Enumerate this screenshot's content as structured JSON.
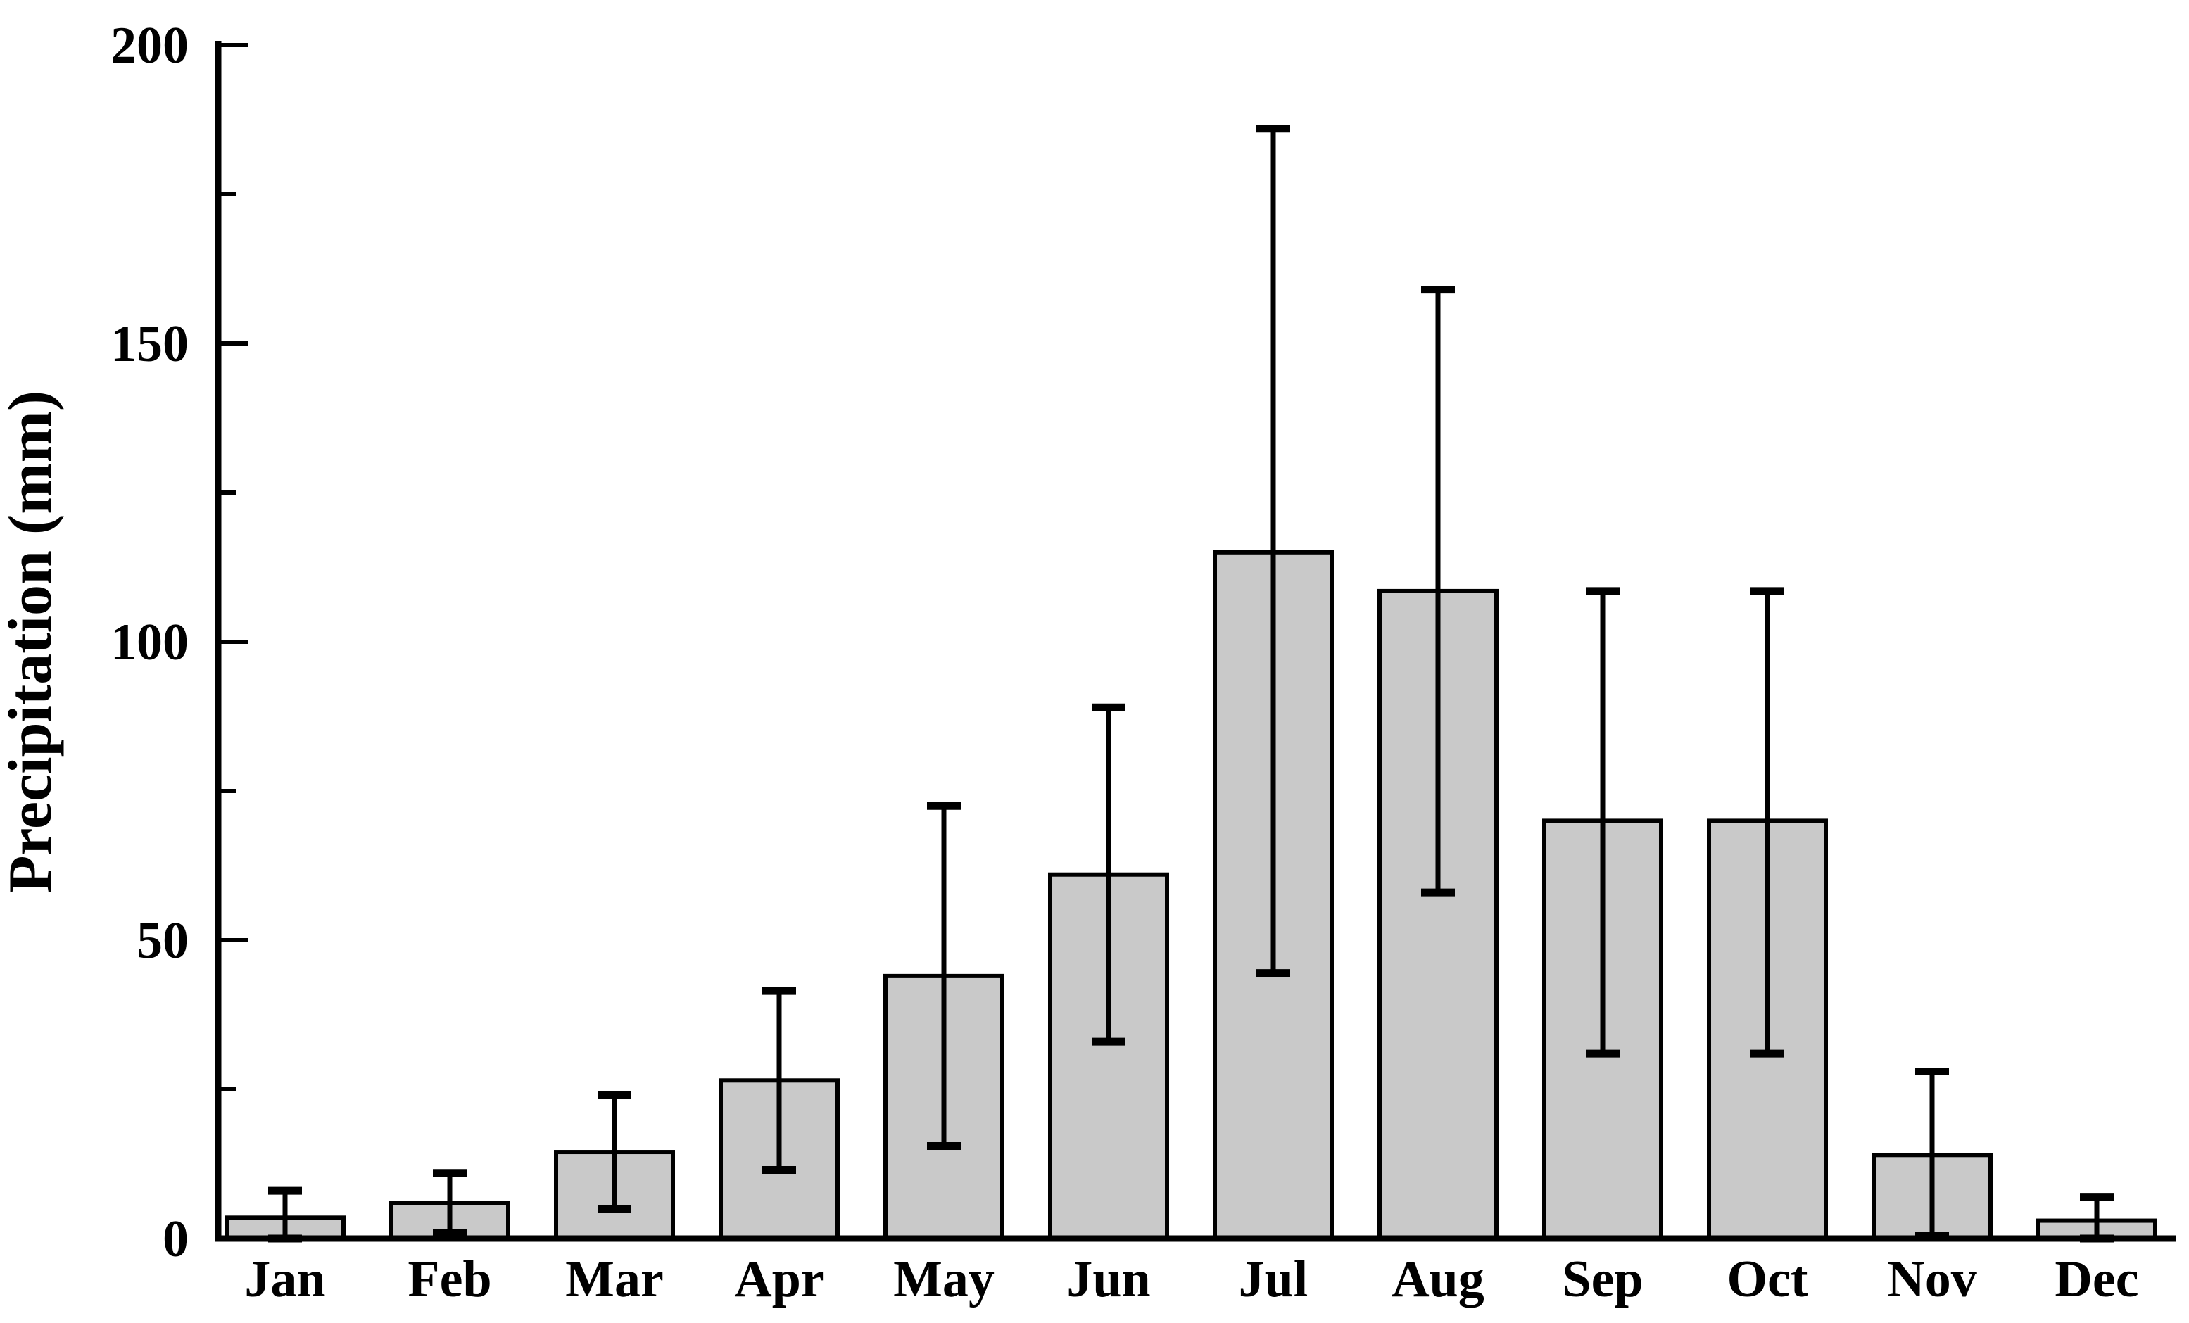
{
  "chart_data": {
    "type": "bar",
    "title": "",
    "xlabel": "",
    "ylabel": "Precipitation (mm)",
    "categories": [
      "Jan",
      "Feb",
      "Mar",
      "Apr",
      "May",
      "Jun",
      "Jul",
      "Aug",
      "Sep",
      "Oct",
      "Nov",
      "Dec"
    ],
    "values": [
      3.5,
      6,
      14.5,
      26.5,
      44,
      61,
      115,
      108.5,
      70,
      70,
      14,
      3
    ],
    "error_bar_low": [
      0,
      1,
      5,
      11.5,
      15.5,
      33,
      44.5,
      58,
      31,
      31,
      0.5,
      0
    ],
    "error_bar_high": [
      8,
      11,
      24,
      41.5,
      72.5,
      89,
      186,
      159,
      108.5,
      108.5,
      28,
      7
    ],
    "ylim": [
      0,
      200
    ],
    "yticks": [
      0,
      50,
      100,
      150,
      200
    ],
    "minor_yticks": [
      25,
      75,
      125,
      175
    ],
    "grid": false,
    "legend_position": "none",
    "colors": {
      "bar_fill": "#c9c9c9",
      "bar_edge": "#000000",
      "error_bar": "#000000",
      "axis": "#000000",
      "text": "#000000",
      "background": "#ffffff"
    }
  }
}
